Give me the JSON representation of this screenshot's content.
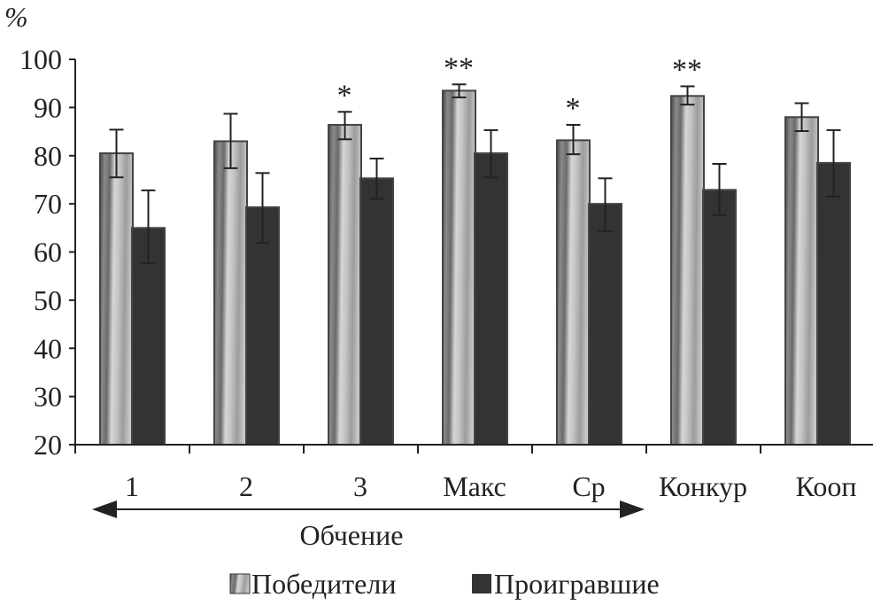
{
  "chart_data": {
    "type": "bar",
    "ylabel": "%",
    "ylim": [
      20,
      100
    ],
    "yticks": [
      20,
      30,
      40,
      50,
      60,
      70,
      80,
      90,
      100
    ],
    "categories": [
      "1",
      "2",
      "3",
      "Макс",
      "Ср",
      "Конкур",
      "Кооп"
    ],
    "group_label": "Обчение",
    "group_label_range": [
      "1",
      "Ср"
    ],
    "grid": false,
    "legend_position": "bottom",
    "series": [
      {
        "name": "Победители",
        "color": "#b8b8b8",
        "pattern": "gradient-striped",
        "values": [
          80.5,
          83.0,
          86.4,
          93.5,
          83.2,
          92.4,
          88.0
        ],
        "error_low": [
          75.5,
          77.4,
          83.4,
          92.1,
          80.3,
          90.6,
          85.1
        ],
        "error_high": [
          85.4,
          88.7,
          89.1,
          94.8,
          86.4,
          94.4,
          90.9
        ]
      },
      {
        "name": "Проигравшие",
        "color": "#333333",
        "values": [
          65.0,
          69.3,
          75.3,
          80.5,
          70.0,
          72.9,
          78.5
        ],
        "error_low": [
          57.7,
          61.9,
          71.0,
          75.5,
          64.3,
          67.6,
          71.5
        ],
        "error_high": [
          72.8,
          76.4,
          79.4,
          85.3,
          75.3,
          78.3,
          85.3
        ]
      }
    ],
    "annotations": [
      "",
      "",
      "*",
      "**",
      "*",
      "**",
      ""
    ]
  }
}
